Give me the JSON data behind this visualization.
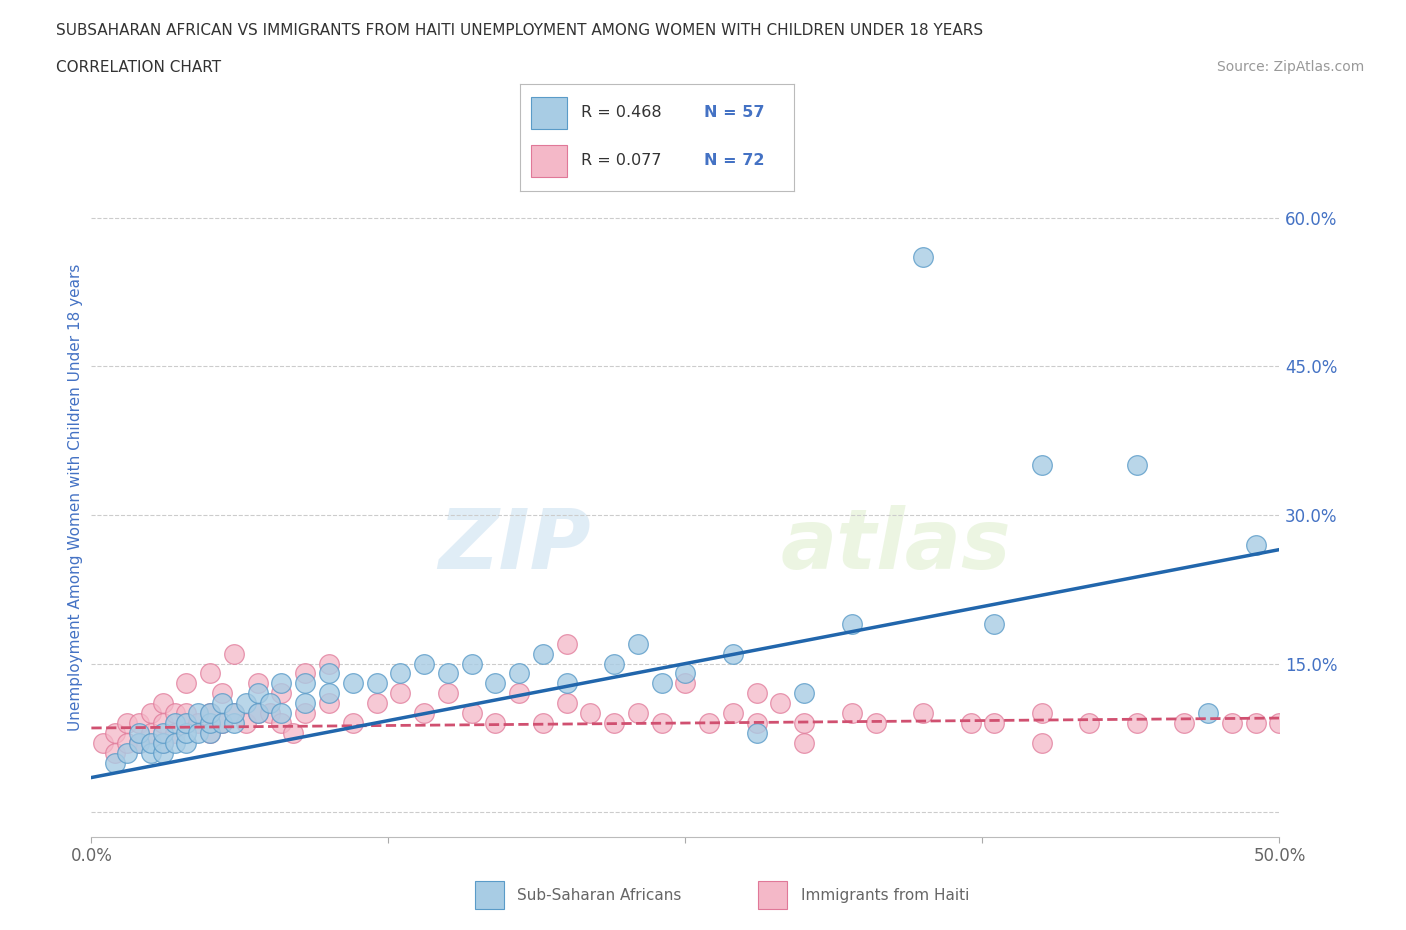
{
  "title_line1": "SUBSAHARAN AFRICAN VS IMMIGRANTS FROM HAITI UNEMPLOYMENT AMONG WOMEN WITH CHILDREN UNDER 18 YEARS",
  "title_line2": "CORRELATION CHART",
  "source_text": "Source: ZipAtlas.com",
  "ylabel": "Unemployment Among Women with Children Under 18 years",
  "xlim": [
    0.0,
    0.5
  ],
  "ylim": [
    -0.025,
    0.66
  ],
  "yticks": [
    0.0,
    0.15,
    0.3,
    0.45,
    0.6
  ],
  "ytick_labels": [
    "",
    "15.0%",
    "30.0%",
    "45.0%",
    "60.0%"
  ],
  "xticks": [
    0.0,
    0.125,
    0.25,
    0.375,
    0.5
  ],
  "xtick_labels": [
    "0.0%",
    "",
    "",
    "",
    "50.0%"
  ],
  "watermark": "ZIPatlas",
  "legend_r1": "R = 0.468",
  "legend_n1": "N = 57",
  "legend_r2": "R = 0.077",
  "legend_n2": "N = 72",
  "blue_color": "#a8cce4",
  "pink_color": "#f4b8c8",
  "blue_edge_color": "#5a9bc8",
  "pink_edge_color": "#e07898",
  "blue_line_color": "#2166ac",
  "pink_line_color": "#d05070",
  "grid_color": "#cccccc",
  "background_color": "#ffffff",
  "blue_scatter_x": [
    0.01,
    0.015,
    0.02,
    0.02,
    0.025,
    0.025,
    0.03,
    0.03,
    0.03,
    0.035,
    0.035,
    0.04,
    0.04,
    0.04,
    0.045,
    0.045,
    0.05,
    0.05,
    0.05,
    0.055,
    0.055,
    0.06,
    0.06,
    0.065,
    0.07,
    0.07,
    0.075,
    0.08,
    0.08,
    0.09,
    0.09,
    0.1,
    0.1,
    0.11,
    0.12,
    0.13,
    0.14,
    0.15,
    0.16,
    0.17,
    0.18,
    0.19,
    0.2,
    0.22,
    0.23,
    0.24,
    0.25,
    0.27,
    0.28,
    0.3,
    0.32,
    0.35,
    0.38,
    0.4,
    0.44,
    0.47,
    0.49
  ],
  "blue_scatter_y": [
    0.05,
    0.06,
    0.07,
    0.08,
    0.06,
    0.07,
    0.06,
    0.07,
    0.08,
    0.07,
    0.09,
    0.07,
    0.08,
    0.09,
    0.08,
    0.1,
    0.08,
    0.09,
    0.1,
    0.09,
    0.11,
    0.09,
    0.1,
    0.11,
    0.1,
    0.12,
    0.11,
    0.1,
    0.13,
    0.11,
    0.13,
    0.12,
    0.14,
    0.13,
    0.13,
    0.14,
    0.15,
    0.14,
    0.15,
    0.13,
    0.14,
    0.16,
    0.13,
    0.15,
    0.17,
    0.13,
    0.14,
    0.16,
    0.08,
    0.12,
    0.19,
    0.56,
    0.19,
    0.35,
    0.35,
    0.1,
    0.27
  ],
  "pink_scatter_x": [
    0.005,
    0.01,
    0.01,
    0.015,
    0.015,
    0.02,
    0.02,
    0.025,
    0.025,
    0.03,
    0.03,
    0.03,
    0.035,
    0.035,
    0.04,
    0.04,
    0.04,
    0.045,
    0.05,
    0.05,
    0.05,
    0.055,
    0.055,
    0.06,
    0.06,
    0.065,
    0.07,
    0.07,
    0.075,
    0.08,
    0.08,
    0.085,
    0.09,
    0.09,
    0.1,
    0.1,
    0.11,
    0.12,
    0.13,
    0.14,
    0.15,
    0.16,
    0.17,
    0.18,
    0.19,
    0.2,
    0.21,
    0.22,
    0.23,
    0.24,
    0.25,
    0.26,
    0.27,
    0.28,
    0.29,
    0.3,
    0.32,
    0.33,
    0.35,
    0.37,
    0.38,
    0.4,
    0.42,
    0.44,
    0.46,
    0.48,
    0.49,
    0.5,
    0.2,
    0.28,
    0.3,
    0.4
  ],
  "pink_scatter_y": [
    0.07,
    0.06,
    0.08,
    0.07,
    0.09,
    0.07,
    0.09,
    0.08,
    0.1,
    0.07,
    0.09,
    0.11,
    0.08,
    0.1,
    0.09,
    0.1,
    0.13,
    0.09,
    0.08,
    0.1,
    0.14,
    0.09,
    0.12,
    0.1,
    0.16,
    0.09,
    0.1,
    0.13,
    0.1,
    0.09,
    0.12,
    0.08,
    0.1,
    0.14,
    0.11,
    0.15,
    0.09,
    0.11,
    0.12,
    0.1,
    0.12,
    0.1,
    0.09,
    0.12,
    0.09,
    0.11,
    0.1,
    0.09,
    0.1,
    0.09,
    0.13,
    0.09,
    0.1,
    0.09,
    0.11,
    0.09,
    0.1,
    0.09,
    0.1,
    0.09,
    0.09,
    0.1,
    0.09,
    0.09,
    0.09,
    0.09,
    0.09,
    0.09,
    0.17,
    0.12,
    0.07,
    0.07
  ],
  "blue_line_x0": 0.0,
  "blue_line_y0": 0.035,
  "blue_line_x1": 0.5,
  "blue_line_y1": 0.265,
  "pink_line_x0": 0.0,
  "pink_line_y0": 0.085,
  "pink_line_x1": 0.5,
  "pink_line_y1": 0.095
}
